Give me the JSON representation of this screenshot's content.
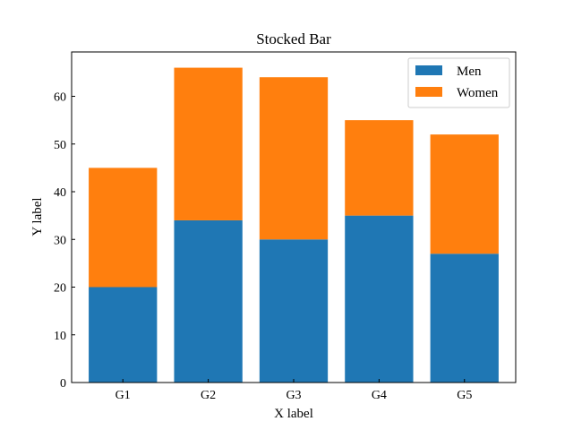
{
  "chart_data": {
    "type": "bar",
    "stacked": true,
    "title": "Stocked Bar",
    "xlabel": "X label",
    "ylabel": "Y label",
    "categories": [
      "G1",
      "G2",
      "G3",
      "G4",
      "G5"
    ],
    "series": [
      {
        "name": "Men",
        "values": [
          20,
          34,
          30,
          35,
          27
        ],
        "color": "#1f77b4"
      },
      {
        "name": "Women",
        "values": [
          25,
          32,
          34,
          20,
          25
        ],
        "color": "#ff7f0e"
      }
    ],
    "ylim": [
      0,
      69.3
    ],
    "yticks": [
      0,
      10,
      20,
      30,
      40,
      50,
      60
    ],
    "grid": false,
    "legend_position": "top-right"
  }
}
